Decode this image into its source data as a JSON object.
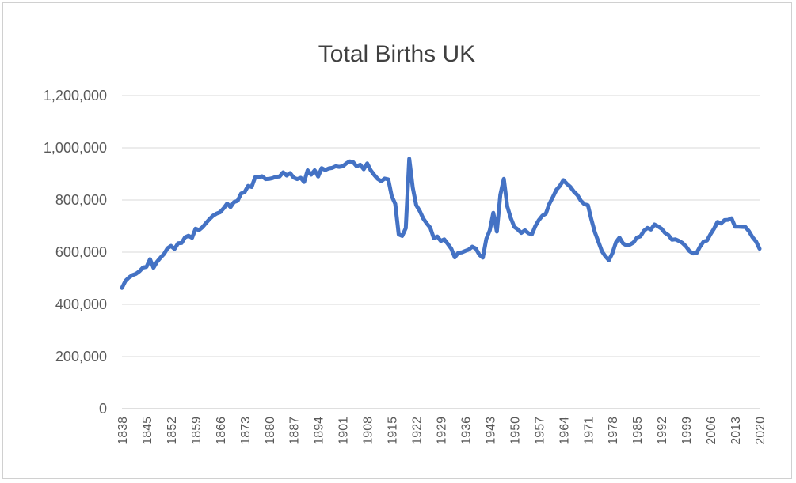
{
  "chart_data": {
    "type": "line",
    "title": "Total Births UK",
    "xlabel": "",
    "ylabel": "",
    "ylim": [
      0,
      1200000
    ],
    "yticks": [
      0,
      200000,
      400000,
      600000,
      800000,
      1000000,
      1200000
    ],
    "ytick_labels": [
      "0",
      "200,000",
      "400,000",
      "600,000",
      "800,000",
      "1,000,000",
      "1,200,000"
    ],
    "xlim": [
      1838,
      2020
    ],
    "xtick_labels": [
      "1838",
      "1845",
      "1852",
      "1859",
      "1866",
      "1873",
      "1880",
      "1887",
      "1894",
      "1901",
      "1908",
      "1915",
      "1922",
      "1929",
      "1936",
      "1943",
      "1950",
      "1957",
      "1964",
      "1971",
      "1978",
      "1985",
      "1992",
      "1999",
      "2006",
      "2013",
      "2020"
    ],
    "grid": true,
    "legend": "none",
    "series": [
      {
        "color": "#4472C4",
        "x": [
          1838,
          1839,
          1840,
          1841,
          1842,
          1843,
          1844,
          1845,
          1846,
          1847,
          1848,
          1849,
          1850,
          1851,
          1852,
          1853,
          1854,
          1855,
          1856,
          1857,
          1858,
          1859,
          1860,
          1861,
          1862,
          1863,
          1864,
          1865,
          1866,
          1867,
          1868,
          1869,
          1870,
          1871,
          1872,
          1873,
          1874,
          1875,
          1876,
          1877,
          1878,
          1879,
          1880,
          1881,
          1882,
          1883,
          1884,
          1885,
          1886,
          1887,
          1888,
          1889,
          1890,
          1891,
          1892,
          1893,
          1894,
          1895,
          1896,
          1897,
          1898,
          1899,
          1900,
          1901,
          1902,
          1903,
          1904,
          1905,
          1906,
          1907,
          1908,
          1909,
          1910,
          1911,
          1912,
          1913,
          1914,
          1915,
          1916,
          1917,
          1918,
          1919,
          1920,
          1921,
          1922,
          1923,
          1924,
          1925,
          1926,
          1927,
          1928,
          1929,
          1930,
          1931,
          1932,
          1933,
          1934,
          1935,
          1936,
          1937,
          1938,
          1939,
          1940,
          1941,
          1942,
          1943,
          1944,
          1945,
          1946,
          1947,
          1948,
          1949,
          1950,
          1951,
          1952,
          1953,
          1954,
          1955,
          1956,
          1957,
          1958,
          1959,
          1960,
          1961,
          1962,
          1963,
          1964,
          1965,
          1966,
          1967,
          1968,
          1969,
          1970,
          1971,
          1972,
          1973,
          1974,
          1975,
          1976,
          1977,
          1978,
          1979,
          1980,
          1981,
          1982,
          1983,
          1984,
          1985,
          1986,
          1987,
          1988,
          1989,
          1990,
          1991,
          1992,
          1993,
          1994,
          1995,
          1996,
          1997,
          1998,
          1999,
          2000,
          2001,
          2002,
          2003,
          2004,
          2005,
          2006,
          2007,
          2008,
          2009,
          2010,
          2011,
          2012,
          2013,
          2014,
          2015,
          2016,
          2017,
          2018,
          2019,
          2020
        ],
        "values": [
          463000,
          490000,
          503000,
          512000,
          517000,
          527000,
          541000,
          544000,
          573000,
          540000,
          563000,
          579000,
          593000,
          615000,
          624000,
          612000,
          634000,
          635000,
          657000,
          663000,
          655000,
          690000,
          685000,
          696000,
          712000,
          727000,
          740000,
          748000,
          753000,
          768000,
          786000,
          773000,
          792000,
          797000,
          825000,
          830000,
          854000,
          850000,
          887000,
          888000,
          891000,
          880000,
          881000,
          884000,
          889000,
          890000,
          906000,
          894000,
          903000,
          886000,
          880000,
          885000,
          869000,
          914000,
          897000,
          914000,
          890000,
          922000,
          915000,
          921000,
          923000,
          929000,
          927000,
          929000,
          940000,
          948000,
          945000,
          929000,
          935000,
          918000,
          940000,
          914000,
          896000,
          881000,
          872000,
          882000,
          879000,
          815000,
          785000,
          668000,
          662000,
          692000,
          958000,
          848000,
          780000,
          758000,
          729000,
          710000,
          694000,
          654000,
          660000,
          643000,
          649000,
          632000,
          613000,
          580000,
          598000,
          599000,
          605000,
          610000,
          621000,
          614000,
          590000,
          579000,
          651000,
          684000,
          751000,
          679000,
          820000,
          881000,
          775000,
          730000,
          697000,
          687000,
          674000,
          684000,
          673000,
          668000,
          700000,
          723000,
          740000,
          748000,
          785000,
          811000,
          839000,
          854000,
          876000,
          862000,
          850000,
          832000,
          819000,
          797000,
          784000,
          780000,
          725000,
          676000,
          640000,
          603000,
          584000,
          569000,
          596000,
          638000,
          656000,
          634000,
          626000,
          629000,
          637000,
          656000,
          661000,
          682000,
          693000,
          687000,
          706000,
          699000,
          690000,
          674000,
          665000,
          648000,
          649000,
          643000,
          635000,
          622000,
          604000,
          595000,
          596000,
          621000,
          640000,
          645000,
          669000,
          690000,
          716000,
          710000,
          723000,
          724000,
          730000,
          698000,
          698000,
          697000,
          696000,
          680000,
          657000,
          641000,
          613000
        ]
      }
    ]
  }
}
